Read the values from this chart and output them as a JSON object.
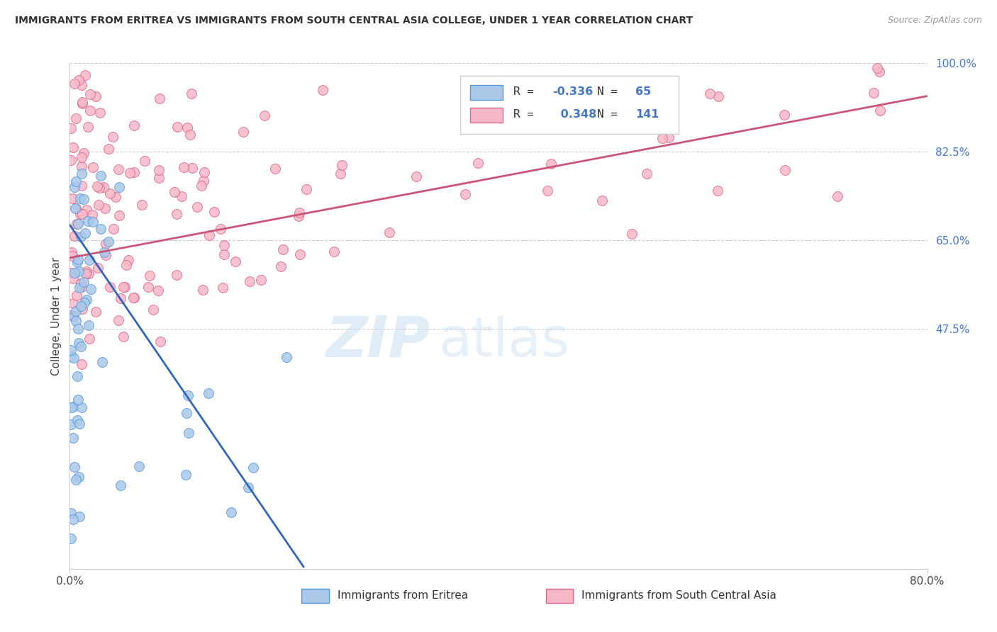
{
  "title": "IMMIGRANTS FROM ERITREA VS IMMIGRANTS FROM SOUTH CENTRAL ASIA COLLEGE, UNDER 1 YEAR CORRELATION CHART",
  "source": "Source: ZipAtlas.com",
  "ylabel": "College, Under 1 year",
  "xlim": [
    0.0,
    0.8
  ],
  "ylim": [
    0.0,
    1.0
  ],
  "xtick_labels": [
    "0.0%",
    "80.0%"
  ],
  "ytick_labels": [
    "100.0%",
    "82.5%",
    "65.0%",
    "47.5%"
  ],
  "ytick_positions": [
    1.0,
    0.825,
    0.65,
    0.475
  ],
  "grid_color": "#cccccc",
  "background_color": "#ffffff",
  "eritrea_color": "#aac8e8",
  "eritrea_edge_color": "#5599dd",
  "sca_color": "#f5b8c8",
  "sca_edge_color": "#dd6688",
  "eritrea_R": -0.336,
  "eritrea_N": 65,
  "sca_R": 0.348,
  "sca_N": 141,
  "eritrea_line_color": "#3366bb",
  "sca_line_color": "#cc5577",
  "eritrea_line_dashed_color": "#bbbbbb",
  "eritrea_line_x0": 0.0,
  "eritrea_line_y0": 0.68,
  "eritrea_line_slope": -3.1,
  "sca_line_x0": 0.0,
  "sca_line_y0": 0.615,
  "sca_line_slope": 0.4,
  "legend_label_eritrea": "Immigrants from Eritrea",
  "legend_label_sca": "Immigrants from South Central Asia",
  "r_value_color": "#4477cc",
  "n_value_color": "#4477cc"
}
